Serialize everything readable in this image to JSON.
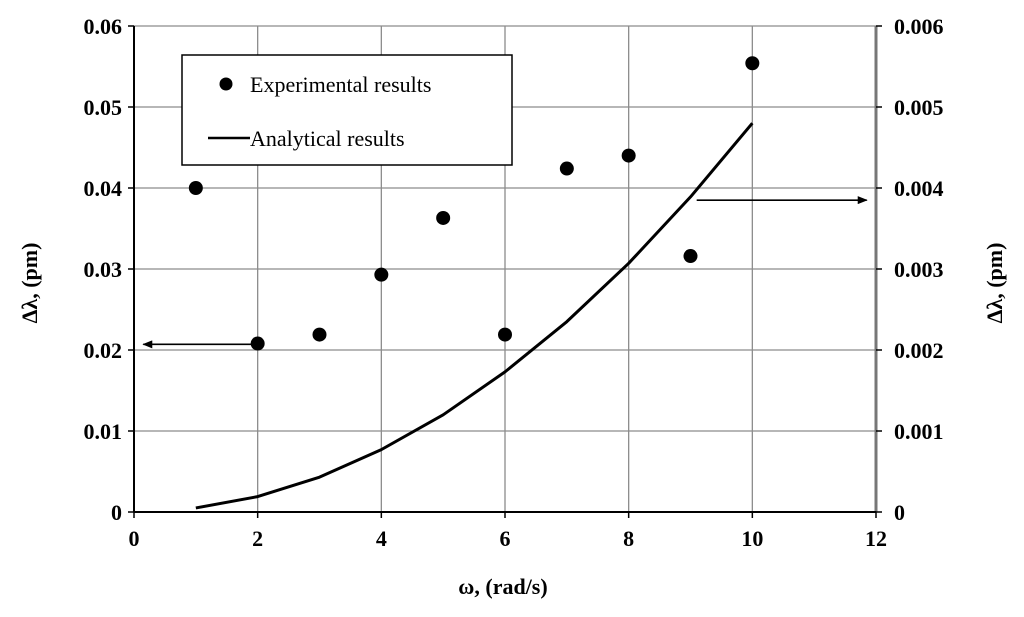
{
  "chart_data": {
    "type": "scatter",
    "xlabel": "ω, (rad/s)",
    "ylabel_left": "Δλ, (pm)",
    "ylabel_right": "Δλ, (pm)",
    "xlim": [
      0,
      12
    ],
    "ylim_left": [
      0,
      0.06
    ],
    "ylim_right": [
      0,
      0.006
    ],
    "x_ticks": [
      "0",
      "2",
      "4",
      "6",
      "8",
      "10",
      "12"
    ],
    "y_ticks_left": [
      "0",
      "0.01",
      "0.02",
      "0.03",
      "0.04",
      "0.05",
      "0.06"
    ],
    "y_ticks_right": [
      "0",
      "0.001",
      "0.002",
      "0.003",
      "0.004",
      "0.005",
      "0.006"
    ],
    "grid": true,
    "legend_position": "top-left",
    "series": [
      {
        "name": "Experimental results",
        "kind": "scatter",
        "axis": "left",
        "color": "#000000",
        "x": [
          1,
          2,
          3,
          4,
          5,
          6,
          7,
          8,
          9,
          10
        ],
        "y": [
          0.04,
          0.0208,
          0.0219,
          0.0293,
          0.0363,
          0.0219,
          0.0424,
          0.044,
          0.0316,
          0.0554
        ]
      },
      {
        "name": "Analytical results",
        "kind": "line",
        "axis": "right",
        "color": "#000000",
        "x": [
          1,
          2,
          3,
          4,
          5,
          6,
          7,
          8,
          9,
          10
        ],
        "y": [
          5e-05,
          0.00019,
          0.00043,
          0.00077,
          0.0012,
          0.00173,
          0.00235,
          0.00307,
          0.00389,
          0.0048
        ]
      }
    ],
    "annotations": [
      {
        "kind": "arrow",
        "points_to": "left-axis",
        "from": [
          2,
          0.0207
        ],
        "to": [
          0.15,
          0.0207
        ]
      },
      {
        "kind": "arrow",
        "points_to": "right-axis",
        "from": [
          9.1,
          0.0385
        ],
        "to": [
          11.85,
          0.0385
        ]
      }
    ]
  }
}
